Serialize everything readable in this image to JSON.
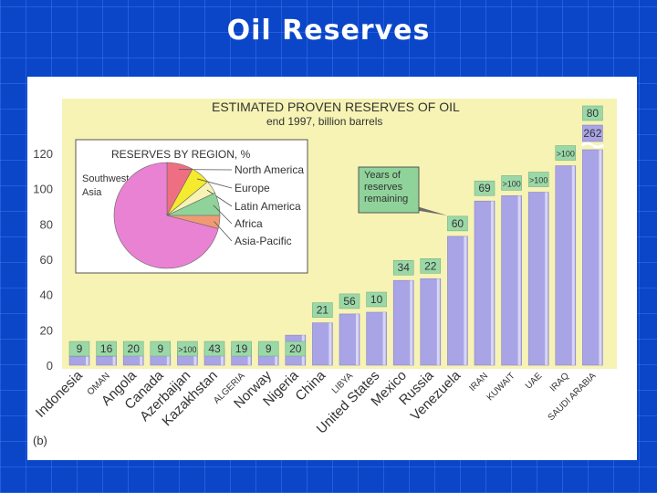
{
  "slide": {
    "title": "Oil Reserves"
  },
  "chart_data": {
    "type": "bar",
    "title": "ESTIMATED PROVEN RESERVES OF OIL",
    "subtitle": "end 1997, billion barrels",
    "figure_label": "(b)",
    "ylim": [
      0,
      120
    ],
    "yticks": [
      0,
      20,
      40,
      60,
      80,
      100,
      120
    ],
    "grid": false,
    "categories": [
      "Indonesia",
      "OMAN",
      "Angola",
      "Canada",
      "Azerbaijan",
      "Kazakhstan",
      "ALGERIA",
      "Norway",
      "Nigeria",
      "China",
      "LIBYA",
      "United States",
      "Mexico",
      "Russia",
      "Venezuela",
      "IRAN",
      "KUWAIT",
      "UAE",
      "IRAQ",
      "SAUDI ARABIA"
    ],
    "values": [
      5,
      5,
      6,
      7,
      8,
      9,
      10,
      11,
      17,
      24,
      29,
      30,
      48,
      49,
      73,
      93,
      96,
      98,
      113,
      121
    ],
    "years_remaining": [
      "9",
      "16",
      "20",
      "9",
      ">100",
      "43",
      "19",
      "9",
      "20",
      "21",
      "56",
      "10",
      "34",
      "22",
      "60",
      "69",
      ">100",
      ">100",
      ">100",
      "80"
    ],
    "annotation": "Years of reserves remaining",
    "break_value": "262",
    "colors": {
      "bar": "#a9a4e6",
      "label_box": "#9bd8a8",
      "plot_bg": "#f6f3b4",
      "highlight": "#ffffff"
    },
    "pie": {
      "title": "RESERVES BY REGION, %",
      "slices": [
        {
          "label": "North America",
          "value": 8,
          "color": "#ef6f82"
        },
        {
          "label": "Europe",
          "value": 6,
          "color": "#f5ea2e"
        },
        {
          "label": "Latin America",
          "value": 4,
          "color": "#f6f3b4"
        },
        {
          "label": "Africa",
          "value": 7,
          "color": "#8fd39b"
        },
        {
          "label": "Asia-Pacific",
          "value": 4,
          "color": "#f09a73"
        },
        {
          "label": "Southwest Asia",
          "value": 71,
          "color": "#e982d3"
        }
      ],
      "southwest_label_1": "Southwest",
      "southwest_label_2": "Asia"
    }
  }
}
